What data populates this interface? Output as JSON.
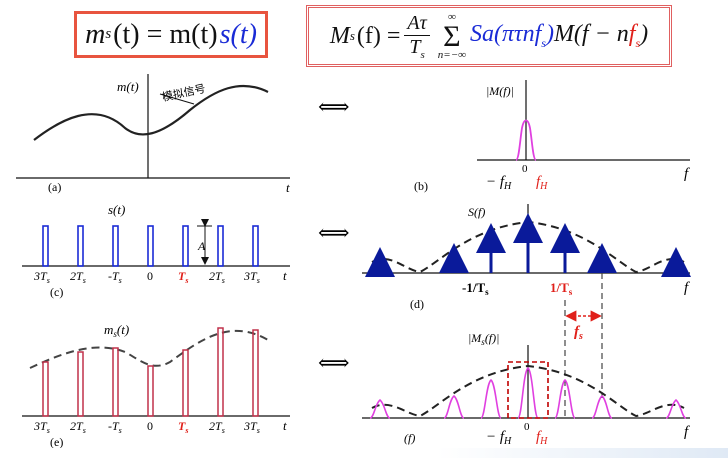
{
  "formulas": {
    "left": {
      "lhs_sym": "m",
      "lhs_sub": "s",
      "lhs_arg": "(t) = m(t)",
      "rhs_blue": "s(t)"
    },
    "right": {
      "lhs": "M",
      "lhs_sub": "s",
      "lhs_arg": "(f) =",
      "frac_num": "Aτ",
      "frac_den": "T",
      "frac_den_sub": "s",
      "sum_top": "∞",
      "sum_sig": "Σ",
      "sum_bottom": "n=−∞",
      "sa": "Sa(πτnf",
      "sa_sub": "s",
      "sa_close": ")",
      "m_part": "M(f − n",
      "f_red": "f",
      "f_red_sub": "s",
      "m_close": ")"
    }
  },
  "equivalence_symbol": "⟺",
  "panels": {
    "a": {
      "label": "(a)",
      "ylabel": "m(t)",
      "xlabel": "t",
      "annotation": "模拟信号"
    },
    "b": {
      "label": "(b)",
      "ylabel": "|M(f)|",
      "xlabel": "f",
      "zero": "0",
      "neg_fh": "− f",
      "neg_fh_sub": "H",
      "fh": "f",
      "fh_sub": "H"
    },
    "c": {
      "label": "(c)",
      "ylabel": "s(t)",
      "xlabel": "t",
      "tau_label": "A",
      "ticks": [
        "3T",
        "2T",
        "-T",
        "0",
        "T",
        "2T",
        "3T"
      ],
      "tick_sub": "s"
    },
    "d": {
      "label": "(d)",
      "ylabel": "S(f)",
      "xlabel": "f",
      "neg_tick": "-1/T",
      "neg_tick_sub": "s",
      "pos_tick": "1/T",
      "pos_tick_sub": "s",
      "fs_label": "f",
      "fs_sub": "s"
    },
    "e": {
      "label": "(e)",
      "ylabel": "m",
      "ylabel_sub": "s",
      "ylabel_arg": "(t)",
      "xlabel": "t",
      "ticks": [
        "3T",
        "2T",
        "-T",
        "0",
        "T",
        "2T",
        "3T"
      ],
      "tick_sub": "s"
    },
    "f": {
      "label": "(f)",
      "ylabel": "|M",
      "ylabel_sub": "s",
      "ylabel_arg": "(f)|",
      "xlabel": "f",
      "zero": "0",
      "neg_fh": "− f",
      "neg_fh_sub": "H",
      "fh": "f",
      "fh_sub": "H"
    }
  },
  "colors": {
    "formula_border": "#e8543f",
    "pulse_blue": "#1a2bd6",
    "sample_red": "#c0304a",
    "spectrum_pink": "#e040e0",
    "accent_red": "#e0201a",
    "curve": "#222222"
  }
}
